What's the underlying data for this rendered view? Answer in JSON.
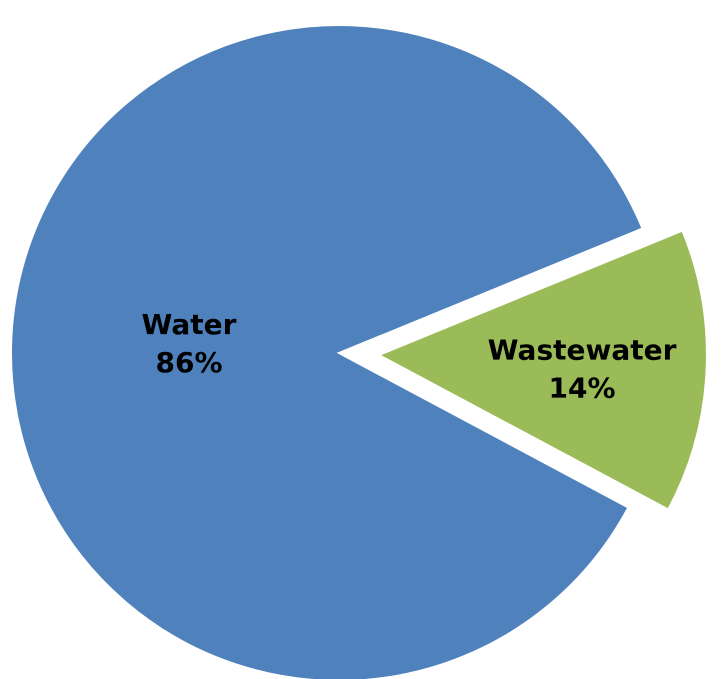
{
  "chart_data": {
    "type": "pie",
    "slices": [
      {
        "name": "Water",
        "value": 86,
        "label": "86%",
        "color": "#4F81BD",
        "exploded": false
      },
      {
        "name": "Wastewater",
        "value": 14,
        "label": "14%",
        "color": "#9BBB59",
        "exploded": true
      }
    ],
    "legend": "none"
  }
}
